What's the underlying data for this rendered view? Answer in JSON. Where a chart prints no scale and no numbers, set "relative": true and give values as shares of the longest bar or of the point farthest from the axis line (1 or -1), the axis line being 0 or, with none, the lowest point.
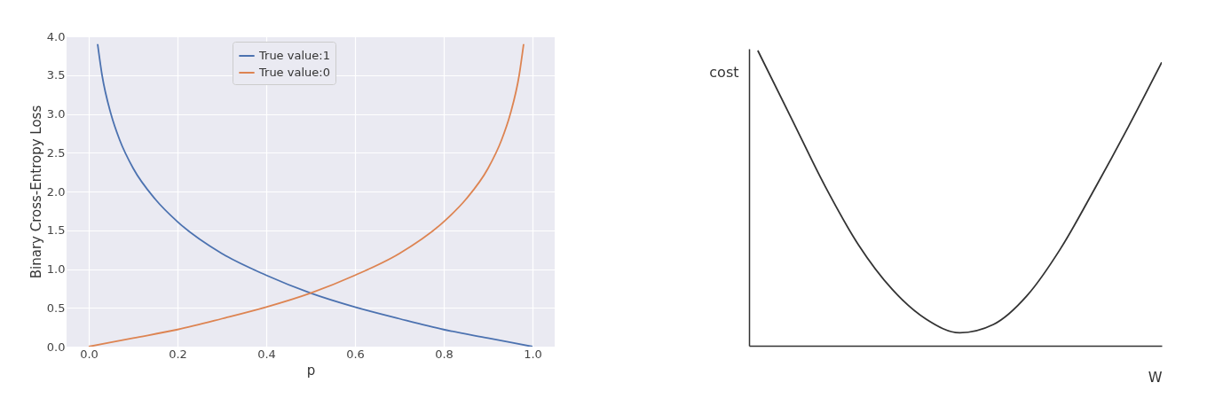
{
  "chart_data": [
    {
      "type": "line",
      "xlabel": "p",
      "ylabel": "Binary Cross-Entropy Loss",
      "xlim": [
        -0.05,
        1.05
      ],
      "ylim": [
        0,
        4
      ],
      "xticks": [
        {
          "value": 0,
          "label": "0.0"
        },
        0.2,
        0.4,
        0.6,
        0.8,
        {
          "value": 1,
          "label": "1.0"
        }
      ],
      "yticks": [
        {
          "value": 0,
          "label": "0.0"
        },
        0.5,
        {
          "value": 1,
          "label": "1.0"
        },
        1.5,
        {
          "value": 2,
          "label": "2.0"
        },
        2.5,
        {
          "value": 3,
          "label": "3.0"
        },
        3.5,
        {
          "value": 4,
          "label": "4.0"
        }
      ],
      "grid": true,
      "legend": "top",
      "series": [
        {
          "name": "True value:1",
          "color": "#4c72b0",
          "x": [
            0.02,
            0.03,
            0.05,
            0.07,
            0.1,
            0.15,
            0.2,
            0.3,
            0.4,
            0.5,
            0.6,
            0.7,
            0.8,
            0.9,
            1.0
          ],
          "values": [
            3.9,
            3.5,
            3.0,
            2.66,
            2.3,
            1.9,
            1.61,
            1.2,
            0.92,
            0.69,
            0.51,
            0.36,
            0.22,
            0.11,
            0.0
          ]
        },
        {
          "name": "True value:0",
          "color": "#dd8452",
          "x": [
            0,
            0.1,
            0.2,
            0.3,
            0.4,
            0.5,
            0.6,
            0.7,
            0.8,
            0.85,
            0.9,
            0.93,
            0.95,
            0.97,
            0.98
          ],
          "values": [
            0,
            0.11,
            0.22,
            0.36,
            0.51,
            0.69,
            0.92,
            1.2,
            1.61,
            1.9,
            2.3,
            2.66,
            3.0,
            3.5,
            3.9
          ]
        }
      ]
    },
    {
      "type": "line",
      "xlabel": "W",
      "ylabel": "cost",
      "relative": true,
      "categories": [
        null,
        null,
        null,
        null,
        null,
        null,
        null,
        null,
        null,
        null,
        null,
        null,
        null
      ],
      "series": [
        {
          "color": "#333333",
          "values": [
            1,
            0.77,
            0.54,
            0.34,
            0.19,
            0.09,
            0.044,
            0.072,
            0.17,
            0.33,
            0.53,
            0.74,
            0.96
          ]
        }
      ]
    }
  ]
}
